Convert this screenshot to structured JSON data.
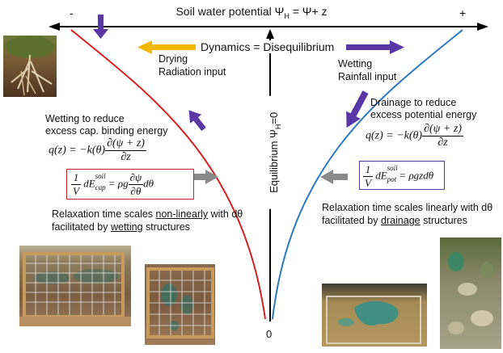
{
  "axis": {
    "title": "Soil water potential Ψ",
    "title_sub": "H",
    "title_rest": " = Ψ+ z",
    "minus": "-",
    "plus": "+",
    "zero": "0"
  },
  "dynamics": "Dynamics = Disequilibrium",
  "equilibrium": {
    "text": "Equilibrium  Ψ",
    "sub": "H",
    "rest": "=0"
  },
  "left": {
    "drying": "Drying",
    "radiation": "Radiation input",
    "wetting_reduce_1": "Wetting to reduce",
    "wetting_reduce_2": "excess cap. binding energy",
    "relax_prefix": "Relaxation time scales ",
    "relax_emph": "non-linearly",
    "relax_suffix": " with dθ",
    "facil_prefix": "facilitated by ",
    "facil_emph": "wetting",
    "facil_suffix": " structures",
    "box_color": "#c0292b"
  },
  "right": {
    "wetting": "Wetting",
    "rainfall": "Rainfall input",
    "drainage_1": "Drainage to reduce",
    "drainage_2": "excess potential energy",
    "relax_prefix": "Relaxation time scales linearly with dθ",
    "facil_prefix": "facilitated by ",
    "facil_emph": "drainage",
    "facil_suffix": " structures",
    "box_color": "#4b3fa6"
  },
  "colors": {
    "red_curve": "#d42020",
    "blue_curve": "#2e78c0",
    "purple_arrow": "#5a37a6",
    "yellow_arrow": "#f2b705",
    "gray_arrow": "#8a8a8a"
  }
}
